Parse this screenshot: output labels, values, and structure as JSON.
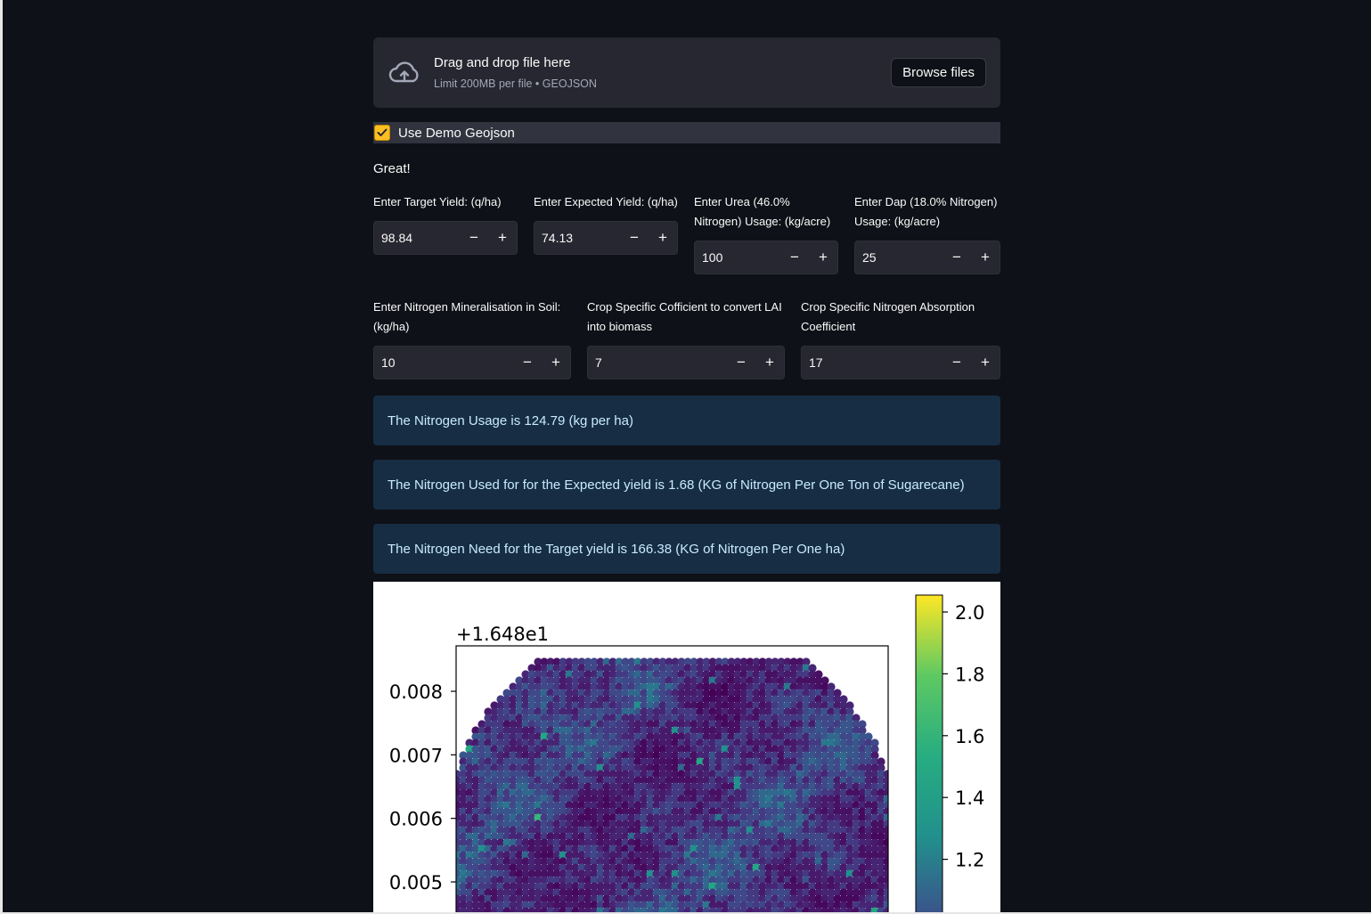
{
  "uploader": {
    "title": "Drag and drop file here",
    "subtitle": "Limit 200MB per file • GEOJSON",
    "browse_label": "Browse files",
    "icon": "cloud-upload-icon"
  },
  "demo_checkbox": {
    "label": "Use Demo Geojson",
    "checked": true
  },
  "status_text": "Great!",
  "inputs_row1": [
    {
      "label": "Enter Target Yield: (q/ha)",
      "value": "98.84"
    },
    {
      "label": "Enter Expected Yield: (q/ha)",
      "value": "74.13"
    },
    {
      "label": "Enter Urea (46.0% Nitrogen) Usage: (kg/acre)",
      "value": "100"
    },
    {
      "label": "Enter Dap (18.0% Nitrogen) Usage: (kg/acre)",
      "value": "25"
    }
  ],
  "inputs_row2": [
    {
      "label": "Enter Nitrogen Mineralisation in Soil: (kg/ha)",
      "value": "10"
    },
    {
      "label": "Crop Specific Cofficient to convert LAI into biomass",
      "value": "7"
    },
    {
      "label": "Crop Specific Nitrogen Absorption Coefficient",
      "value": "17"
    }
  ],
  "stepper": {
    "minus": "−",
    "plus": "+"
  },
  "info_messages": [
    "The Nitrogen Usage is 124.79 (kg per ha)",
    "The Nitrogen Used for for the Expected yield is 1.68 (KG of Nitrogen Per One Ton of Sugarecane)",
    "The Nitrogen Need for the Target yield is 166.38 (KG of Nitrogen Per One ha)"
  ],
  "colors": {
    "background": "#0e1117",
    "panel": "#262730",
    "info_bg": "#172d43",
    "info_text": "#c7ebff",
    "checkbox": "#fbbf24"
  },
  "chart_data": {
    "type": "heatmap",
    "offset_text": "+1.648e1",
    "y_ticks": [
      "0.008",
      "0.007",
      "0.006",
      "0.005"
    ],
    "y_tick_values": [
      0.008,
      0.007,
      0.006,
      0.005
    ],
    "ylim": [
      0.0035,
      0.0087
    ],
    "colorbar_ticks": [
      "2.0",
      "1.8",
      "1.6",
      "1.4",
      "1.2"
    ],
    "colorbar_tick_values": [
      2.0,
      1.8,
      1.6,
      1.4,
      1.2
    ],
    "colorbar_range": [
      0.9,
      2.05
    ],
    "colormap": "viridis",
    "shape": "circular field",
    "grid": false
  }
}
